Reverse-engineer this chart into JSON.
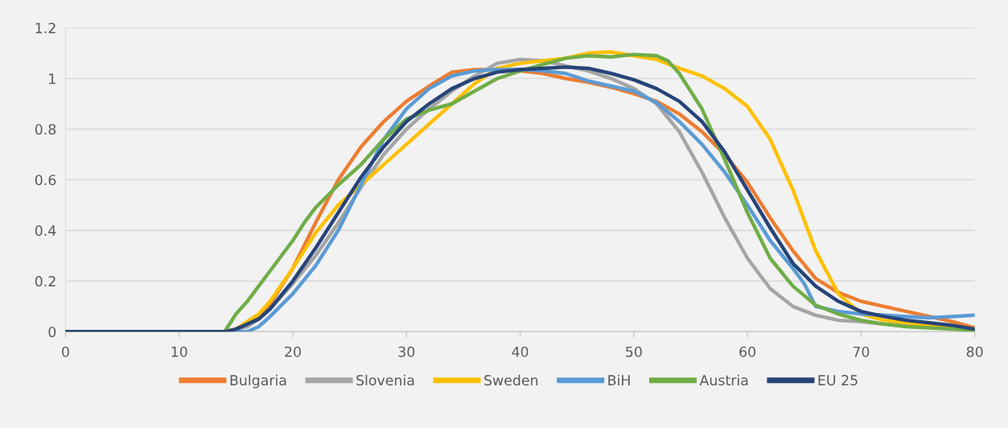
{
  "chart_data": {
    "type": "line",
    "xlim": [
      0,
      80
    ],
    "xticks": [
      0,
      10,
      20,
      30,
      40,
      50,
      60,
      70,
      80
    ],
    "ylim": [
      0,
      1.2
    ],
    "yticks": [
      0,
      0.2,
      0.4,
      0.6,
      0.8,
      1,
      1.2
    ],
    "grid": "y",
    "legend": "bottom",
    "marker": "none",
    "line_style": "solid",
    "series": [
      {
        "name": "Bulgaria",
        "color": "#ed7d31",
        "x": [
          0,
          14,
          15,
          16,
          17,
          18,
          20,
          22,
          24,
          26,
          28,
          30,
          32,
          34,
          36,
          38,
          40,
          42,
          44,
          46,
          48,
          50,
          52,
          54,
          56,
          58,
          60,
          62,
          64,
          66,
          68,
          70,
          72,
          74,
          76,
          78,
          80
        ],
        "values": [
          0,
          0,
          0.01,
          0.03,
          0.06,
          0.11,
          0.25,
          0.43,
          0.6,
          0.73,
          0.83,
          0.91,
          0.97,
          1.025,
          1.035,
          1.035,
          1.03,
          1.02,
          1.0,
          0.985,
          0.965,
          0.94,
          0.91,
          0.86,
          0.79,
          0.7,
          0.59,
          0.45,
          0.32,
          0.21,
          0.155,
          0.12,
          0.1,
          0.08,
          0.06,
          0.04,
          0.015
        ]
      },
      {
        "name": "Slovenia",
        "color": "#a5a5a5",
        "x": [
          0,
          14,
          15,
          16,
          17,
          18,
          20,
          22,
          24,
          26,
          28,
          30,
          32,
          34,
          36,
          38,
          40,
          42,
          44,
          46,
          48,
          50,
          52,
          54,
          56,
          58,
          60,
          62,
          64,
          66,
          68,
          70,
          72,
          74,
          76,
          78,
          80
        ],
        "values": [
          0,
          0,
          0.01,
          0.02,
          0.05,
          0.09,
          0.19,
          0.3,
          0.43,
          0.57,
          0.7,
          0.8,
          0.88,
          0.95,
          1.01,
          1.06,
          1.075,
          1.07,
          1.05,
          1.03,
          1.0,
          0.96,
          0.9,
          0.79,
          0.63,
          0.45,
          0.29,
          0.17,
          0.1,
          0.065,
          0.045,
          0.04,
          0.03,
          0.025,
          0.02,
          0.015,
          0.01
        ]
      },
      {
        "name": "Sweden",
        "color": "#ffc000",
        "x": [
          0,
          14,
          15,
          16,
          17,
          18,
          20,
          22,
          24,
          26,
          28,
          30,
          32,
          34,
          36,
          38,
          40,
          42,
          44,
          46,
          48,
          50,
          52,
          54,
          56,
          58,
          60,
          62,
          64,
          66,
          68,
          70,
          72,
          74,
          76,
          78,
          80
        ],
        "values": [
          0,
          0,
          0.01,
          0.04,
          0.07,
          0.12,
          0.25,
          0.39,
          0.5,
          0.58,
          0.66,
          0.74,
          0.82,
          0.9,
          0.98,
          1.04,
          1.06,
          1.07,
          1.08,
          1.1,
          1.105,
          1.09,
          1.075,
          1.04,
          1.01,
          0.96,
          0.89,
          0.76,
          0.56,
          0.32,
          0.15,
          0.07,
          0.045,
          0.035,
          0.025,
          0.02,
          0.01
        ]
      },
      {
        "name": "BiH",
        "color": "#5b9bd5",
        "x": [
          0,
          14,
          15,
          16,
          17,
          18,
          20,
          22,
          24,
          26,
          28,
          30,
          32,
          34,
          36,
          38,
          40,
          42,
          44,
          46,
          48,
          50,
          52,
          54,
          56,
          58,
          60,
          62,
          64,
          65,
          66,
          68,
          70,
          72,
          74,
          76,
          78,
          80
        ],
        "values": [
          0,
          0,
          0,
          0,
          0.02,
          0.06,
          0.15,
          0.26,
          0.4,
          0.58,
          0.76,
          0.88,
          0.96,
          1.01,
          1.03,
          1.035,
          1.035,
          1.03,
          1.02,
          0.99,
          0.97,
          0.95,
          0.905,
          0.83,
          0.74,
          0.63,
          0.5,
          0.36,
          0.25,
          0.19,
          0.1,
          0.08,
          0.07,
          0.065,
          0.06,
          0.055,
          0.06,
          0.065
        ]
      },
      {
        "name": "Austria",
        "color": "#70ad47",
        "x": [
          0,
          14,
          15,
          16,
          17,
          18,
          20,
          21,
          22,
          24,
          26,
          28,
          30,
          32,
          34,
          36,
          38,
          40,
          42,
          44,
          46,
          48,
          50,
          52,
          53,
          54,
          56,
          58,
          60,
          62,
          64,
          66,
          68,
          70,
          72,
          74,
          76,
          78,
          80
        ],
        "values": [
          0,
          0,
          0.07,
          0.12,
          0.18,
          0.24,
          0.36,
          0.43,
          0.49,
          0.58,
          0.66,
          0.76,
          0.84,
          0.875,
          0.9,
          0.95,
          1.0,
          1.03,
          1.055,
          1.08,
          1.09,
          1.085,
          1.095,
          1.09,
          1.07,
          1.02,
          0.88,
          0.68,
          0.47,
          0.29,
          0.18,
          0.105,
          0.07,
          0.045,
          0.03,
          0.02,
          0.015,
          0.01,
          0.005
        ]
      },
      {
        "name": "EU 25",
        "color": "#264478",
        "x": [
          0,
          14,
          15,
          16,
          17,
          18,
          20,
          22,
          24,
          26,
          28,
          30,
          32,
          34,
          36,
          38,
          40,
          42,
          44,
          46,
          48,
          50,
          52,
          54,
          56,
          58,
          60,
          62,
          64,
          66,
          68,
          70,
          72,
          74,
          76,
          78,
          80
        ],
        "values": [
          0,
          0,
          0.01,
          0.03,
          0.05,
          0.09,
          0.2,
          0.33,
          0.47,
          0.61,
          0.73,
          0.83,
          0.9,
          0.96,
          1.0,
          1.025,
          1.035,
          1.04,
          1.045,
          1.04,
          1.02,
          0.995,
          0.96,
          0.91,
          0.83,
          0.71,
          0.56,
          0.41,
          0.27,
          0.18,
          0.12,
          0.08,
          0.06,
          0.045,
          0.035,
          0.025,
          0.01
        ]
      }
    ]
  }
}
